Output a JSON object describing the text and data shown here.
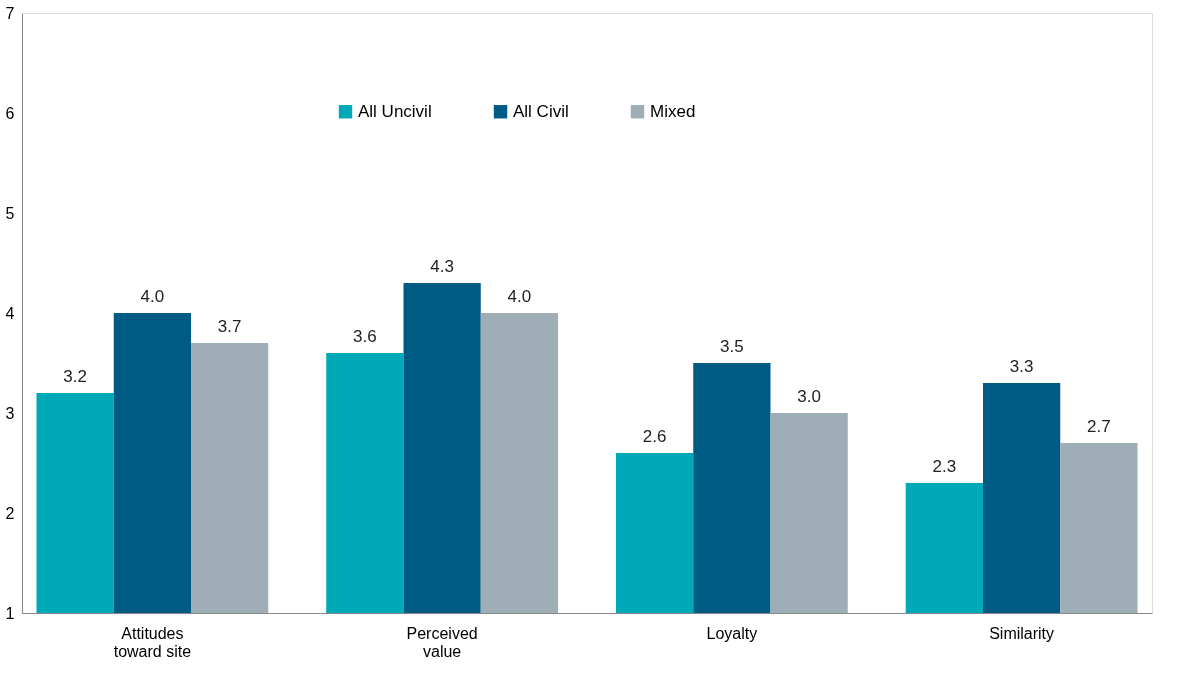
{
  "chart_data": {
    "type": "bar",
    "categories": [
      "Attitudes toward site",
      "Perceived value",
      "Loyalty",
      "Similarity"
    ],
    "series": [
      {
        "name": "All Uncivil",
        "color": "#00a9b8",
        "values": [
          3.2,
          3.6,
          2.6,
          2.3
        ],
        "value_labels": [
          "3.2",
          "3.6",
          "2.6",
          "2.3"
        ]
      },
      {
        "name": "All Civil",
        "color": "#005b84",
        "values": [
          4.0,
          4.3,
          3.5,
          3.3
        ],
        "value_labels": [
          "4.0",
          "4.3",
          "3.5",
          "3.3"
        ]
      },
      {
        "name": "Mixed",
        "color": "#9fadb7",
        "values": [
          3.7,
          4.0,
          3.0,
          2.7
        ],
        "value_labels": [
          "3.7",
          "4.0",
          "3.0",
          "2.7"
        ]
      }
    ],
    "ylim": [
      1,
      7
    ],
    "yticks": [
      1,
      2,
      3,
      4,
      5,
      6,
      7
    ],
    "grid": false,
    "legend": "top"
  }
}
